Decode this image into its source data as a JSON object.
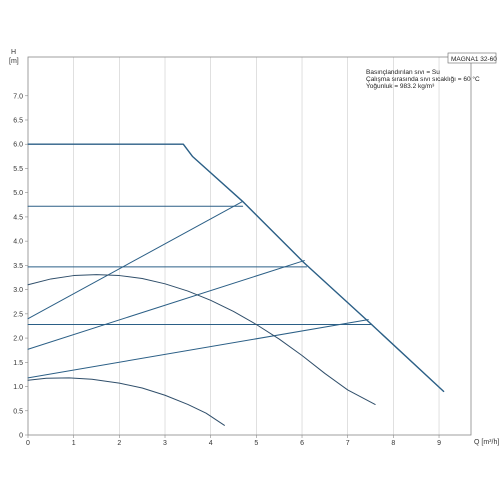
{
  "chart_data": {
    "type": "line",
    "title": "",
    "model": "MAGNA1 32-60",
    "info_lines": [
      "Basınçlandırılan sıvı = Su",
      "Çalışma sırasında sıvı sıcaklığı = 60 °C",
      "Yoğunluk = 983.2 kg/m³"
    ],
    "ylabel_symbol": "H",
    "ylabel_unit": "[m]",
    "xlabel": "Q [m³/h]",
    "xlim": [
      0,
      9.7
    ],
    "ylim": [
      0,
      7.8
    ],
    "x_ticks": [
      0,
      1,
      2,
      3,
      4,
      5,
      6,
      7,
      8,
      9
    ],
    "y_ticks": [
      0,
      0.5,
      1.0,
      1.5,
      2.0,
      2.5,
      3.0,
      3.5,
      4.0,
      4.5,
      5.0,
      5.5,
      6.0,
      6.5,
      7.0
    ],
    "y_tick_labels": [
      "0",
      "0.5",
      "1.0",
      "1.5",
      "2.0",
      "2.5",
      "3.0",
      "3.5",
      "4.0",
      "4.5",
      "5.0",
      "5.5",
      "6.0",
      "6.5",
      "7.0"
    ],
    "grid": {
      "vertical": true,
      "horizontal": false
    },
    "colors": {
      "curve": "#2b5f86",
      "efficiency": "#2f4e6a",
      "grid": "#cccccc",
      "axis": "#888888"
    },
    "series": [
      {
        "kind": "max-curve",
        "points": [
          [
            0,
            6.0
          ],
          [
            3.4,
            6.0
          ],
          [
            3.6,
            5.75
          ],
          [
            4.7,
            4.82
          ],
          [
            6.05,
            3.55
          ],
          [
            7.5,
            2.3
          ],
          [
            9.1,
            0.9
          ]
        ]
      },
      {
        "kind": "constant-pressure",
        "points": [
          [
            0,
            4.72
          ],
          [
            4.7,
            4.72
          ]
        ]
      },
      {
        "kind": "constant-pressure",
        "points": [
          [
            0,
            3.47
          ],
          [
            6.1,
            3.47
          ]
        ]
      },
      {
        "kind": "constant-pressure",
        "points": [
          [
            0,
            2.28
          ],
          [
            7.5,
            2.28
          ]
        ]
      },
      {
        "kind": "proportional-pressure",
        "points": [
          [
            0,
            2.4
          ],
          [
            4.7,
            4.82
          ]
        ]
      },
      {
        "kind": "proportional-pressure",
        "points": [
          [
            0,
            1.77
          ],
          [
            6.05,
            3.6
          ]
        ]
      },
      {
        "kind": "proportional-pressure",
        "points": [
          [
            0,
            1.18
          ],
          [
            7.45,
            2.38
          ]
        ]
      },
      {
        "kind": "min-curve",
        "points": [
          [
            0,
            3.1
          ],
          [
            0.5,
            3.22
          ],
          [
            1.0,
            3.29
          ],
          [
            1.5,
            3.31
          ],
          [
            2.0,
            3.29
          ],
          [
            2.5,
            3.23
          ],
          [
            3.0,
            3.12
          ],
          [
            3.5,
            2.97
          ],
          [
            4.0,
            2.78
          ],
          [
            4.5,
            2.55
          ],
          [
            5.0,
            2.28
          ],
          [
            5.5,
            1.98
          ],
          [
            6.0,
            1.64
          ],
          [
            6.5,
            1.27
          ],
          [
            7.0,
            0.93
          ],
          [
            7.6,
            0.63
          ]
        ]
      },
      {
        "kind": "min-curve",
        "points": [
          [
            0,
            1.13
          ],
          [
            0.4,
            1.17
          ],
          [
            0.9,
            1.18
          ],
          [
            1.4,
            1.15
          ],
          [
            2.0,
            1.07
          ],
          [
            2.5,
            0.97
          ],
          [
            3.0,
            0.82
          ],
          [
            3.5,
            0.63
          ],
          [
            3.9,
            0.45
          ],
          [
            4.3,
            0.2
          ]
        ]
      }
    ]
  }
}
